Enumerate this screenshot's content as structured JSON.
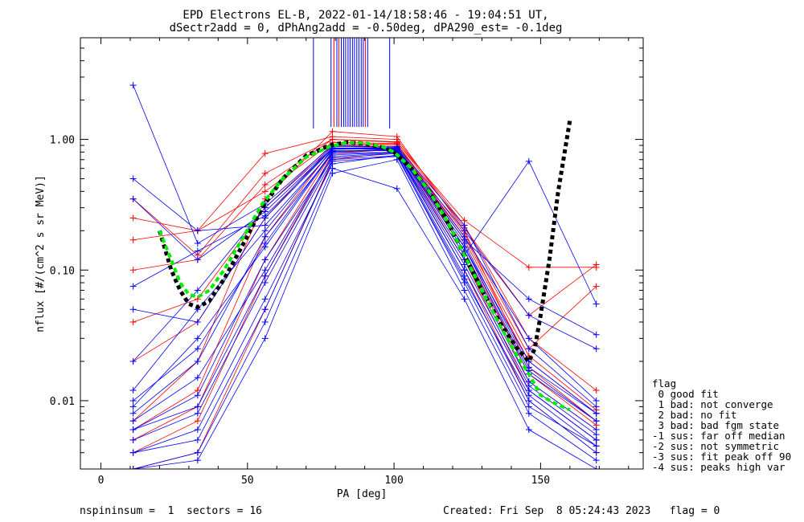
{
  "chart_data": {
    "type": "line",
    "title_lines": [
      "EPD Electrons EL-B, 2022-01-14/18:58:46 - 19:04:51 UT,",
      "dSectr2add = 0, dPhAng2add = -0.50deg, dPA290_est=  -0.1deg"
    ],
    "xlabel": "PA [deg]",
    "ylabel": "nflux [#/(cm^2 s sr MeV)]",
    "xlim": [
      -7,
      185
    ],
    "ylim": [
      0.003,
      6
    ],
    "yscale": "log",
    "x_ticks": [
      0,
      50,
      100,
      150
    ],
    "x_tick_labels": [
      "0",
      "50",
      "100",
      "150"
    ],
    "y_ticks": [
      0.01,
      0.1,
      1.0
    ],
    "y_tick_labels": [
      "0.01",
      "0.10",
      "1.00"
    ],
    "grid": false,
    "legend_position": "right",
    "colors": {
      "blue": "#0000ff",
      "red": "#ff0000",
      "green": "#00ee00",
      "black": "#000000"
    },
    "sample_pa": [
      11,
      33,
      56,
      79,
      101,
      124,
      146,
      169
    ],
    "series": [
      {
        "color": "blue",
        "values": [
          0.008,
          0.02,
          0.18,
          0.78,
          0.8,
          0.12,
          0.014,
          0.006
        ]
      },
      {
        "color": "blue",
        "values": [
          0.006,
          0.011,
          0.12,
          0.72,
          0.78,
          0.1,
          0.012,
          0.005
        ]
      },
      {
        "color": "blue",
        "values": [
          0.05,
          0.04,
          0.25,
          0.85,
          0.84,
          0.15,
          0.02,
          0.008
        ]
      },
      {
        "color": "blue",
        "values": [
          0.004,
          0.006,
          0.06,
          0.65,
          0.76,
          0.09,
          0.01,
          0.004
        ]
      },
      {
        "color": "blue",
        "values": [
          2.6,
          0.16,
          0.32,
          0.9,
          0.87,
          0.18,
          0.03,
          0.01
        ]
      },
      {
        "color": "blue",
        "values": [
          0.5,
          0.2,
          0.22,
          0.82,
          0.82,
          0.13,
          0.68,
          0.055
        ]
      },
      {
        "color": "blue",
        "values": [
          0.35,
          0.12,
          0.28,
          0.86,
          0.85,
          0.2,
          0.045,
          0.025
        ]
      },
      {
        "color": "blue",
        "values": [
          0.003,
          0.004,
          0.04,
          0.6,
          0.42,
          0.06,
          0.006,
          0.003
        ]
      },
      {
        "color": "blue",
        "values": [
          0.009,
          0.03,
          0.15,
          0.8,
          0.83,
          0.14,
          0.016,
          0.007
        ]
      },
      {
        "color": "blue",
        "values": [
          0.012,
          0.05,
          0.2,
          0.84,
          0.85,
          0.16,
          0.018,
          0.008
        ]
      },
      {
        "color": "blue",
        "values": [
          0.005,
          0.008,
          0.08,
          0.7,
          0.75,
          0.08,
          0.009,
          0.0045
        ]
      },
      {
        "color": "blue",
        "values": [
          0.02,
          0.07,
          0.3,
          0.88,
          0.88,
          0.22,
          0.025,
          0.009
        ]
      },
      {
        "color": "blue",
        "values": [
          0.007,
          0.015,
          0.1,
          0.76,
          0.8,
          0.11,
          0.013,
          0.0055
        ]
      },
      {
        "color": "blue",
        "values": [
          0.004,
          0.005,
          0.05,
          0.68,
          0.74,
          0.085,
          0.011,
          0.0045
        ]
      },
      {
        "color": "blue",
        "values": [
          0.075,
          0.14,
          0.26,
          0.86,
          0.86,
          0.17,
          0.06,
          0.032
        ]
      },
      {
        "color": "blue",
        "values": [
          0.006,
          0.009,
          0.09,
          0.74,
          0.79,
          0.1,
          0.012,
          0.005
        ]
      },
      {
        "color": "blue",
        "values": [
          0.003,
          0.0035,
          0.03,
          0.55,
          0.7,
          0.07,
          0.008,
          0.0035
        ]
      },
      {
        "color": "blue",
        "values": [
          0.01,
          0.025,
          0.16,
          0.81,
          0.84,
          0.15,
          0.017,
          0.007
        ]
      },
      {
        "color": "red",
        "values": [
          0.007,
          0.02,
          0.35,
          1.15,
          1.05,
          0.2,
          0.018,
          0.007
        ]
      },
      {
        "color": "red",
        "values": [
          0.1,
          0.12,
          0.45,
          1.0,
          0.95,
          0.24,
          0.105,
          0.105
        ]
      },
      {
        "color": "red",
        "values": [
          0.25,
          0.2,
          0.78,
          1.05,
          1.0,
          0.22,
          0.03,
          0.012
        ]
      },
      {
        "color": "red",
        "values": [
          0.17,
          0.2,
          0.4,
          0.95,
          0.93,
          0.19,
          0.025,
          0.075
        ]
      },
      {
        "color": "red",
        "values": [
          0.005,
          0.009,
          0.12,
          0.8,
          0.85,
          0.14,
          0.014,
          0.006
        ]
      },
      {
        "color": "red",
        "values": [
          0.003,
          0.004,
          0.05,
          0.7,
          0.8,
          0.1,
          0.01,
          0.004
        ]
      },
      {
        "color": "red",
        "values": [
          0.02,
          0.04,
          0.25,
          0.9,
          0.9,
          0.17,
          0.02,
          0.008
        ]
      },
      {
        "color": "red",
        "values": [
          0.35,
          0.13,
          0.55,
          1.0,
          0.96,
          0.21,
          0.045,
          0.11
        ]
      },
      {
        "color": "red",
        "values": [
          0.006,
          0.012,
          0.18,
          0.85,
          0.88,
          0.15,
          0.016,
          0.0065
        ]
      },
      {
        "color": "red",
        "values": [
          0.04,
          0.06,
          0.3,
          0.92,
          0.92,
          0.18,
          0.022,
          0.0085
        ]
      },
      {
        "color": "red",
        "values": [
          0.004,
          0.007,
          0.09,
          0.78,
          0.84,
          0.12,
          0.012,
          0.005
        ]
      }
    ],
    "fit_black": {
      "x": [
        20,
        24,
        27,
        30,
        33,
        37,
        42,
        48,
        55,
        62,
        70,
        78,
        84,
        90,
        96,
        100,
        106,
        112,
        118,
        124,
        130,
        136,
        142,
        146,
        148,
        150,
        153,
        156,
        160
      ],
      "y": [
        0.2,
        0.1,
        0.07,
        0.055,
        0.052,
        0.058,
        0.085,
        0.15,
        0.3,
        0.5,
        0.75,
        0.9,
        0.95,
        0.93,
        0.87,
        0.8,
        0.6,
        0.4,
        0.24,
        0.13,
        0.07,
        0.04,
        0.025,
        0.02,
        0.025,
        0.045,
        0.12,
        0.4,
        1.4
      ]
    },
    "fit_green": {
      "x": [
        20,
        24,
        27,
        30,
        33,
        37,
        42,
        48,
        55,
        62,
        70,
        78,
        84,
        90,
        96,
        100,
        106,
        112,
        118,
        124,
        130,
        136,
        142,
        146,
        150,
        155,
        160
      ],
      "y": [
        0.2,
        0.12,
        0.08,
        0.065,
        0.062,
        0.07,
        0.1,
        0.17,
        0.32,
        0.5,
        0.73,
        0.88,
        0.95,
        0.94,
        0.88,
        0.8,
        0.6,
        0.4,
        0.24,
        0.13,
        0.07,
        0.038,
        0.022,
        0.016,
        0.011,
        0.0095,
        0.0085
      ]
    },
    "clipped_spikes_x": [
      72.5,
      78.5,
      79.5,
      80.5,
      81.2,
      82,
      82.8,
      83.5,
      84.3,
      85,
      85.8,
      86.5,
      87.3,
      88,
      88.8,
      89.5,
      90.2,
      91,
      98.5
    ],
    "legend": {
      "title": "flag",
      "entries": [
        " 0 good fit",
        " 1 bad: not converge",
        " 2 bad: no fit",
        " 3 bad: bad fgm state",
        "-1 sus: far off median",
        "-2 sus: not symmetric",
        "-3 sus: fit peak off 90",
        "-4 sus: peaks high var"
      ]
    },
    "footer": {
      "left": "nspininsum =  1  sectors = 16",
      "right": "Created: Fri Sep  8 05:24:43 2023   flag = 0"
    }
  }
}
